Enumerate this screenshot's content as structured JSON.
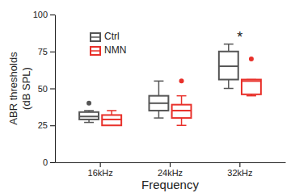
{
  "chart_data": {
    "type": "box",
    "x_label": "Frequency",
    "y_label": [
      "ABR thresholds",
      "(dB SPL)"
    ],
    "categories": [
      "16kHz",
      "24kHz",
      "32kHz"
    ],
    "ylim": [
      0,
      100
    ],
    "yticks": [
      0,
      25,
      50,
      75,
      100
    ],
    "legend": "top-left",
    "series": [
      {
        "name": "Ctrl",
        "color": "#555555",
        "min": [
          27,
          30,
          50
        ],
        "q1": [
          29,
          35,
          56
        ],
        "median": [
          31,
          40,
          65
        ],
        "q3": [
          34,
          45,
          75
        ],
        "max": [
          35,
          55,
          80
        ],
        "outliers": [
          [
            40
          ],
          [],
          []
        ]
      },
      {
        "name": "NMN",
        "color": "#e8302a",
        "min": [
          25,
          25,
          45
        ],
        "q1": [
          25,
          30,
          46
        ],
        "median": [
          29,
          35,
          55
        ],
        "q3": [
          32,
          39,
          56
        ],
        "max": [
          35,
          45,
          56
        ],
        "outliers": [
          [],
          [
            55
          ],
          [
            70
          ]
        ]
      }
    ],
    "annotations": [
      {
        "text": "*",
        "x": "32kHz",
        "y": 84
      }
    ]
  }
}
